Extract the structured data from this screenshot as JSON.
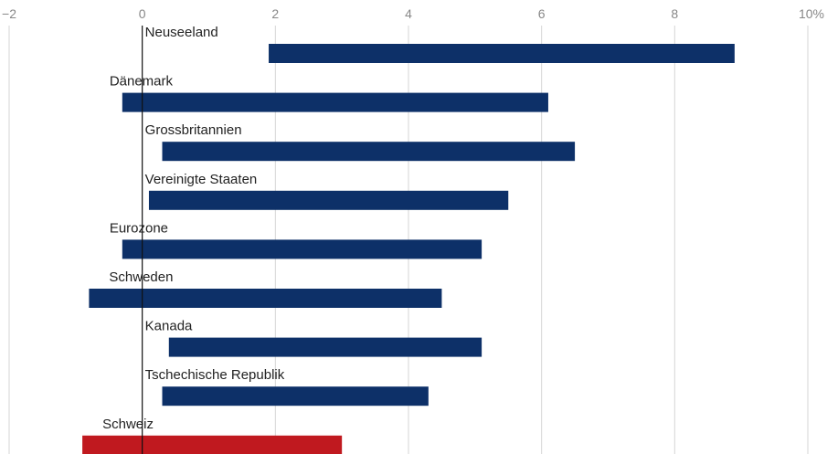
{
  "chart_data": {
    "type": "bar",
    "orientation": "horizontal",
    "subtype": "floating-range",
    "categories": [
      "Neuseeland",
      "Dänemark",
      "Grossbritannien",
      "Vereinigte Staaten",
      "Eurozone",
      "Schweden",
      "Kanada",
      "Tschechische Republik",
      "Schweiz"
    ],
    "ranges": [
      {
        "category": "Neuseeland",
        "start": 1.9,
        "end": 8.9
      },
      {
        "category": "Dänemark",
        "start": -0.3,
        "end": 6.1
      },
      {
        "category": "Grossbritannien",
        "start": 0.3,
        "end": 6.5
      },
      {
        "category": "Vereinigte Staaten",
        "start": 0.1,
        "end": 5.5
      },
      {
        "category": "Eurozone",
        "start": -0.3,
        "end": 5.1
      },
      {
        "category": "Schweden",
        "start": -0.8,
        "end": 4.5
      },
      {
        "category": "Kanada",
        "start": 0.4,
        "end": 5.1
      },
      {
        "category": "Tschechische Republik",
        "start": 0.3,
        "end": 4.3
      },
      {
        "category": "Schweiz",
        "start": -0.9,
        "end": 3.0
      }
    ],
    "highlight": "Schweiz",
    "colors": {
      "default": "#0d3068",
      "highlight": "#c0191f",
      "grid": "#d6d6d6",
      "zero": "#111111"
    },
    "x_ticks": [
      -2,
      0,
      2,
      4,
      6,
      8,
      10
    ],
    "x_tick_labels": [
      "−2",
      "0",
      "2",
      "4",
      "6",
      "8",
      "10%"
    ],
    "xlim": [
      -2,
      10
    ],
    "grid": true,
    "title": "",
    "xlabel": "",
    "ylabel": ""
  }
}
